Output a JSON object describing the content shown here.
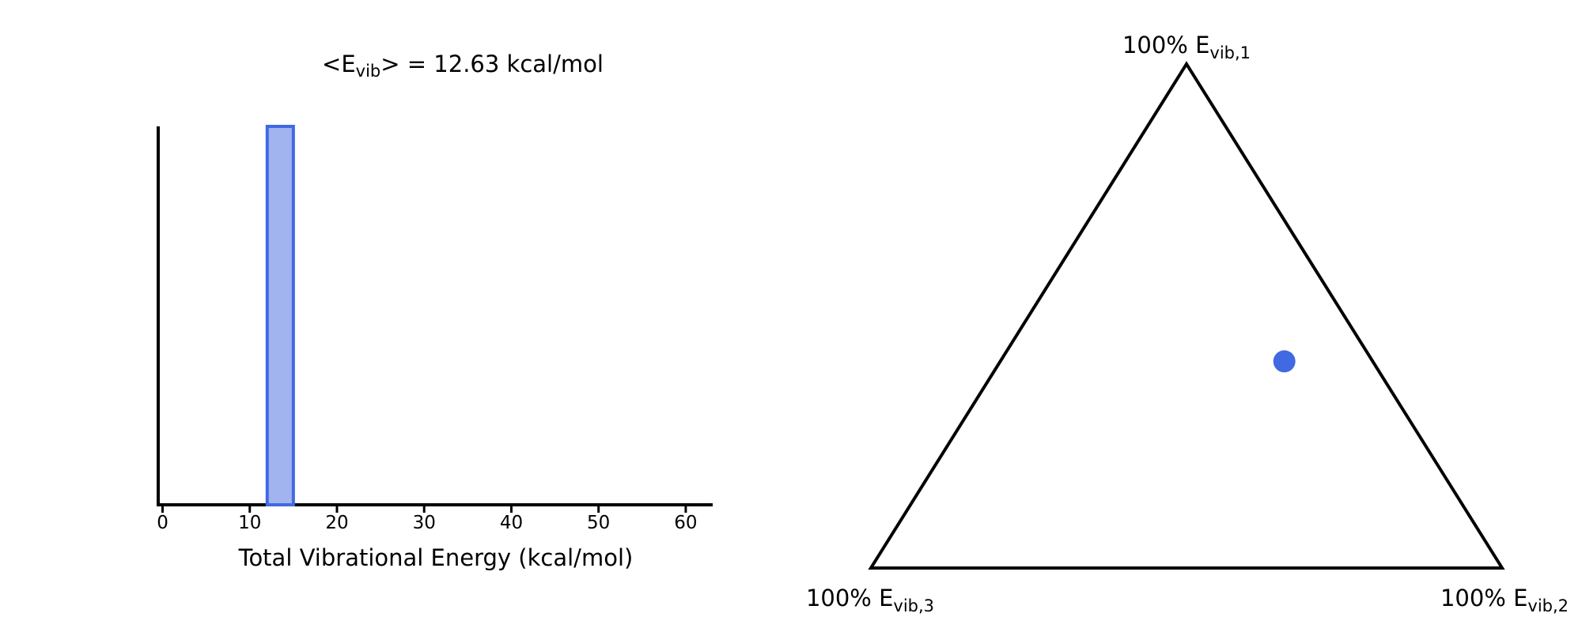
{
  "colors": {
    "bar_fill": "#a1b4ef",
    "bar_stroke": "#4169e1",
    "point": "#4169e1",
    "axis": "#000000"
  },
  "chart_data": [
    {
      "type": "bar",
      "title": {
        "prefix": "<E",
        "sub": "vib",
        "suffix": "> = 12.63 kcal/mol"
      },
      "xlabel": "Total Vibrational Energy (kcal/mol)",
      "ylabel": "",
      "xlim": [
        -0.5,
        63
      ],
      "ylim": [
        0,
        1
      ],
      "xticks": [
        0,
        10,
        20,
        30,
        40,
        50,
        60
      ],
      "bins": [
        {
          "x_start": 12,
          "x_end": 15,
          "value": 1
        }
      ],
      "grid": false,
      "y_axis_visible_ticks": false
    },
    {
      "type": "scatter",
      "subtype": "ternary",
      "corner_labels": [
        {
          "prefix": "100% E",
          "sub": "vib,1"
        },
        {
          "prefix": "100% E",
          "sub": "vib,2"
        },
        {
          "prefix": "100% E",
          "sub": "vib,3"
        }
      ],
      "points": [
        {
          "f1": 0.41,
          "f2": 0.45,
          "f3": 0.14
        }
      ],
      "grid": false
    }
  ]
}
